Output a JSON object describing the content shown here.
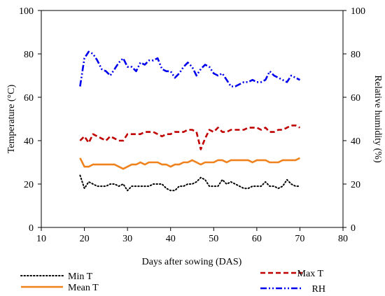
{
  "chart_data": {
    "type": "line",
    "xlabel": "Days after sowing (DAS)",
    "ylabel": "Temperature (°C)",
    "y2label": "Relative humidity (%)",
    "xlim": [
      10,
      80
    ],
    "ylim": [
      0,
      100
    ],
    "y2lim": [
      0,
      100
    ],
    "x_ticks": [
      10,
      20,
      30,
      40,
      50,
      60,
      70,
      80
    ],
    "y_ticks": [
      0,
      20,
      40,
      60,
      80,
      100
    ],
    "y2_ticks": [
      0,
      20,
      40,
      60,
      80,
      100
    ],
    "grid": false,
    "legend_position": "bottom",
    "series": [
      {
        "name": "Min T",
        "axis": "left",
        "color": "#000000",
        "dash": "1.5,3",
        "x": [
          19,
          20,
          21,
          22,
          23,
          24,
          25,
          26,
          27,
          28,
          29,
          30,
          31,
          32,
          33,
          34,
          35,
          36,
          37,
          38,
          39,
          40,
          41,
          42,
          43,
          44,
          45,
          46,
          47,
          48,
          49,
          50,
          51,
          52,
          53,
          54,
          55,
          56,
          57,
          58,
          59,
          60,
          61,
          62,
          63,
          64,
          65,
          66,
          67,
          68,
          69,
          70
        ],
        "values": [
          24,
          18,
          21,
          20,
          19,
          19,
          19,
          20,
          20,
          19,
          20,
          17,
          19,
          19,
          19,
          19,
          19,
          20,
          20,
          20,
          18,
          17,
          17,
          19,
          19,
          20,
          20,
          21,
          23,
          22,
          19,
          19,
          19,
          22,
          20,
          21,
          20,
          19,
          18,
          18,
          19,
          19,
          19,
          21,
          19,
          19,
          18,
          19,
          22,
          20,
          19,
          19
        ]
      },
      {
        "name": "Max T",
        "axis": "left",
        "color": "#c00000",
        "dash": "7,4",
        "x": [
          19,
          20,
          21,
          22,
          23,
          24,
          25,
          26,
          27,
          28,
          29,
          30,
          31,
          32,
          33,
          34,
          35,
          36,
          37,
          38,
          39,
          40,
          41,
          42,
          43,
          44,
          45,
          46,
          47,
          48,
          49,
          50,
          51,
          52,
          53,
          54,
          55,
          56,
          57,
          58,
          59,
          60,
          61,
          62,
          63,
          64,
          65,
          66,
          67,
          68,
          69,
          70
        ],
        "values": [
          40,
          42,
          39,
          43,
          42,
          41,
          40,
          42,
          41,
          40,
          40,
          43,
          43,
          43,
          43,
          44,
          44,
          44,
          43,
          42,
          43,
          43,
          44,
          44,
          44,
          45,
          45,
          44,
          36,
          41,
          45,
          44,
          46,
          44,
          44,
          45,
          45,
          45,
          45,
          46,
          46,
          46,
          45,
          46,
          44,
          44,
          45,
          45,
          46,
          47,
          47,
          46
        ]
      },
      {
        "name": "Mean T",
        "axis": "left",
        "color": "#f0821e",
        "dash": "",
        "x": [
          19,
          20,
          21,
          22,
          23,
          24,
          25,
          26,
          27,
          28,
          29,
          30,
          31,
          32,
          33,
          34,
          35,
          36,
          37,
          38,
          39,
          40,
          41,
          42,
          43,
          44,
          45,
          46,
          47,
          48,
          49,
          50,
          51,
          52,
          53,
          54,
          55,
          56,
          57,
          58,
          59,
          60,
          61,
          62,
          63,
          64,
          65,
          66,
          67,
          68,
          69,
          70
        ],
        "values": [
          32,
          28,
          28,
          29,
          29,
          29,
          29,
          29,
          29,
          28,
          27,
          28,
          29,
          29,
          30,
          29,
          30,
          30,
          30,
          29,
          29,
          28,
          29,
          29,
          30,
          30,
          31,
          30,
          29,
          30,
          30,
          30,
          31,
          31,
          30,
          31,
          31,
          31,
          31,
          31,
          30,
          31,
          31,
          31,
          30,
          30,
          30,
          31,
          31,
          31,
          31,
          32
        ]
      },
      {
        "name": "RH",
        "axis": "right",
        "color": "#0000ee",
        "dash": "9,3,2,3,2,3",
        "x": [
          19,
          20,
          21,
          22,
          23,
          24,
          25,
          26,
          27,
          28,
          29,
          30,
          31,
          32,
          33,
          34,
          35,
          36,
          37,
          38,
          39,
          40,
          41,
          42,
          43,
          44,
          45,
          46,
          47,
          48,
          49,
          50,
          51,
          52,
          53,
          54,
          55,
          56,
          57,
          58,
          59,
          60,
          61,
          62,
          63,
          64,
          65,
          66,
          67,
          68,
          69,
          70
        ],
        "values": [
          65,
          78,
          81,
          80,
          77,
          73,
          72,
          70,
          73,
          76,
          78,
          74,
          74,
          72,
          76,
          75,
          77,
          77,
          78,
          73,
          72,
          72,
          69,
          71,
          74,
          76,
          74,
          70,
          73,
          75,
          74,
          71,
          70,
          71,
          68,
          65,
          65,
          66,
          67,
          67,
          68,
          67,
          67,
          68,
          72,
          70,
          69,
          68,
          67,
          70,
          69,
          68
        ]
      }
    ]
  }
}
